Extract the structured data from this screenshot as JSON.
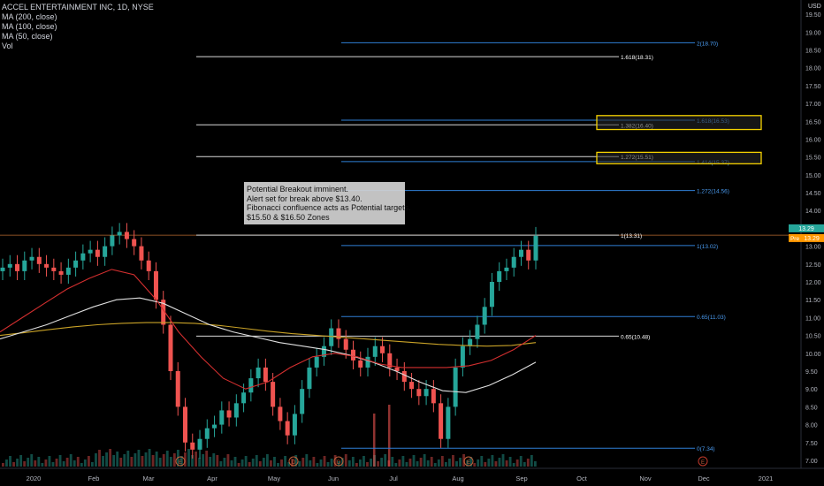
{
  "header": {
    "title": "ACCEL ENTERTAINMENT INC, 1D, NYSE",
    "indicators": [
      "MA (200, close)",
      "MA (100, close)",
      "MA (50, close)",
      "Vol"
    ],
    "currency": "USD"
  },
  "note": {
    "lines": [
      "Potential Breakout imminent.",
      "Alert set for break above $13.40.",
      "Fibonacci confluence acts as Potential targets.",
      "$15.50 & $16.50 Zones"
    ]
  },
  "price_tags": {
    "last": "13.29",
    "pre_label": "Pre",
    "pre_value": "13.29"
  },
  "colors": {
    "background": "#000000",
    "up": "#26a69a",
    "down": "#ef5350",
    "ma200": "#c9a227",
    "ma100": "#e0e0e0",
    "ma50": "#d32f2f",
    "fib_blue": "#2f7fd6",
    "fib_white": "#d9d9d9",
    "zone": "#f5d200",
    "last_tag": "#26a69a",
    "pre_tag": "#ff9800",
    "hline": "#b86a2f"
  },
  "chart_data": {
    "type": "candlestick",
    "title": "ACCEL ENTERTAINMENT INC, 1D, NYSE",
    "x_tick_labels": [
      "2020",
      "Feb",
      "Mar",
      "Apr",
      "May",
      "Jun",
      "Jul",
      "Aug",
      "Sep",
      "Oct",
      "Nov",
      "Dec",
      "2021"
    ],
    "y_tick_labels": [
      "7.00",
      "7.50",
      "8.00",
      "8.50",
      "9.00",
      "9.50",
      "10.00",
      "10.50",
      "11.00",
      "11.50",
      "12.00",
      "12.50",
      "13.00",
      "13.50",
      "14.00",
      "14.50",
      "15.00",
      "15.50",
      "16.00",
      "16.50",
      "17.00",
      "17.50",
      "18.00",
      "18.50",
      "19.00",
      "19.50"
    ],
    "ylim": [
      6.9,
      19.75
    ],
    "last_price": 13.29,
    "close_series": [
      12.4,
      12.5,
      12.3,
      12.6,
      12.7,
      12.5,
      12.4,
      12.3,
      12.2,
      12.4,
      12.6,
      12.8,
      12.9,
      12.7,
      13.0,
      13.3,
      13.4,
      13.2,
      13.0,
      12.6,
      12.3,
      11.5,
      10.8,
      9.5,
      8.5,
      7.5,
      7.3,
      7.6,
      7.9,
      8.0,
      8.4,
      8.2,
      8.6,
      8.9,
      9.3,
      9.6,
      9.2,
      8.5,
      8.1,
      7.7,
      8.3,
      9.0,
      9.6,
      9.9,
      10.2,
      10.7,
      10.4,
      10.1,
      9.8,
      9.6,
      9.9,
      10.2,
      10.0,
      9.6,
      9.5,
      9.2,
      9.0,
      8.8,
      9.0,
      8.6,
      7.6,
      8.5,
      9.6,
      10.2,
      10.4,
      10.8,
      11.3,
      12.0,
      12.3,
      12.4,
      12.7,
      12.9,
      12.6,
      13.29
    ],
    "series": [
      {
        "name": "MA (200, close)",
        "values": [
          10.5,
          10.58,
          10.66,
          10.74,
          10.8,
          10.84,
          10.86,
          10.86,
          10.84,
          10.78,
          10.7,
          10.62,
          10.55,
          10.5,
          10.45,
          10.4,
          10.35,
          10.3,
          10.25,
          10.22,
          10.2,
          10.22,
          10.3
        ]
      },
      {
        "name": "MA (100, close)",
        "values": [
          10.4,
          10.6,
          10.8,
          11.05,
          11.3,
          11.5,
          11.55,
          11.4,
          11.1,
          10.8,
          10.6,
          10.45,
          10.3,
          10.2,
          10.1,
          9.95,
          9.75,
          9.5,
          9.2,
          8.95,
          8.9,
          9.1,
          9.4,
          9.75
        ]
      },
      {
        "name": "MA (50, close)",
        "values": [
          10.6,
          11.0,
          11.4,
          11.8,
          12.1,
          12.35,
          12.2,
          11.5,
          10.6,
          9.9,
          9.3,
          9.0,
          9.2,
          9.6,
          9.9,
          10.0,
          9.9,
          9.7,
          9.6,
          9.6,
          9.6,
          9.65,
          9.8,
          10.1,
          10.5
        ]
      }
    ],
    "fib_left": {
      "levels": [
        {
          "label": "1.618(18.31)",
          "value": 18.31
        },
        {
          "label": "1.382(16.40)",
          "value": 16.4
        },
        {
          "label": "1.272(15.51)",
          "value": 15.51
        },
        {
          "label": "1(13.31)",
          "value": 13.31
        },
        {
          "label": "0.65(10.48)",
          "value": 10.48
        }
      ]
    },
    "fib_right": {
      "levels": [
        {
          "label": "2(18.70)",
          "value": 18.7
        },
        {
          "label": "1.618(16.53)",
          "value": 16.53
        },
        {
          "label": "1.414(15.37)",
          "value": 15.37
        },
        {
          "label": "1.272(14.56)",
          "value": 14.56
        },
        {
          "label": "1(13.02)",
          "value": 13.02
        },
        {
          "label": "0.65(11.03)",
          "value": 11.03
        },
        {
          "label": "0(7.34)",
          "value": 7.34
        }
      ]
    },
    "zones": [
      {
        "label": "$16.50 Zone",
        "low": 16.27,
        "high": 16.66
      },
      {
        "label": "$15.50 Zone",
        "low": 15.31,
        "high": 15.63
      }
    ],
    "event_markers": [
      "E",
      "D",
      "D",
      "D",
      "D",
      "D",
      "D",
      "E"
    ]
  }
}
